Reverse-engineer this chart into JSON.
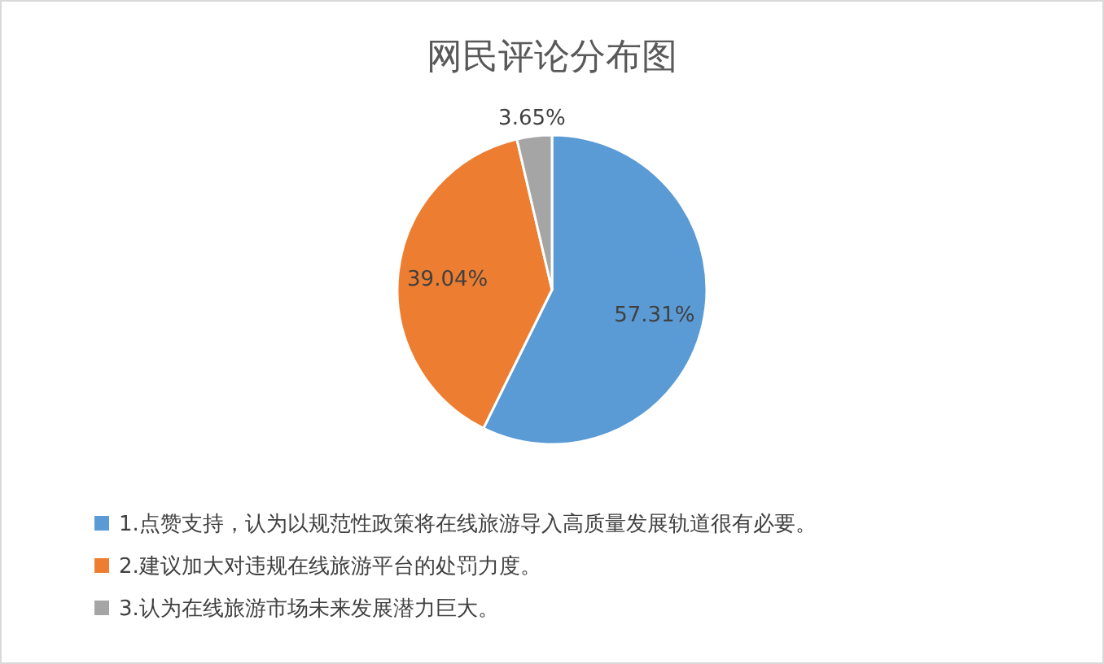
{
  "chart_data": {
    "type": "pie",
    "title": "网民评论分布图",
    "categories": [
      "1.点赞支持，认为以规范性政策将在线旅游导入高质量发展轨道很有必要。",
      "2.建议加大对违规在线旅游平台的处罚力度。",
      "3.认为在线旅游市场未来发展潜力巨大。"
    ],
    "values": [
      57.31,
      39.04,
      3.65
    ],
    "value_labels": [
      "57.31%",
      "39.04%",
      "3.65%"
    ],
    "colors": [
      "#5b9bd5",
      "#ed7d31",
      "#a5a5a5"
    ],
    "legend": "bottom"
  }
}
